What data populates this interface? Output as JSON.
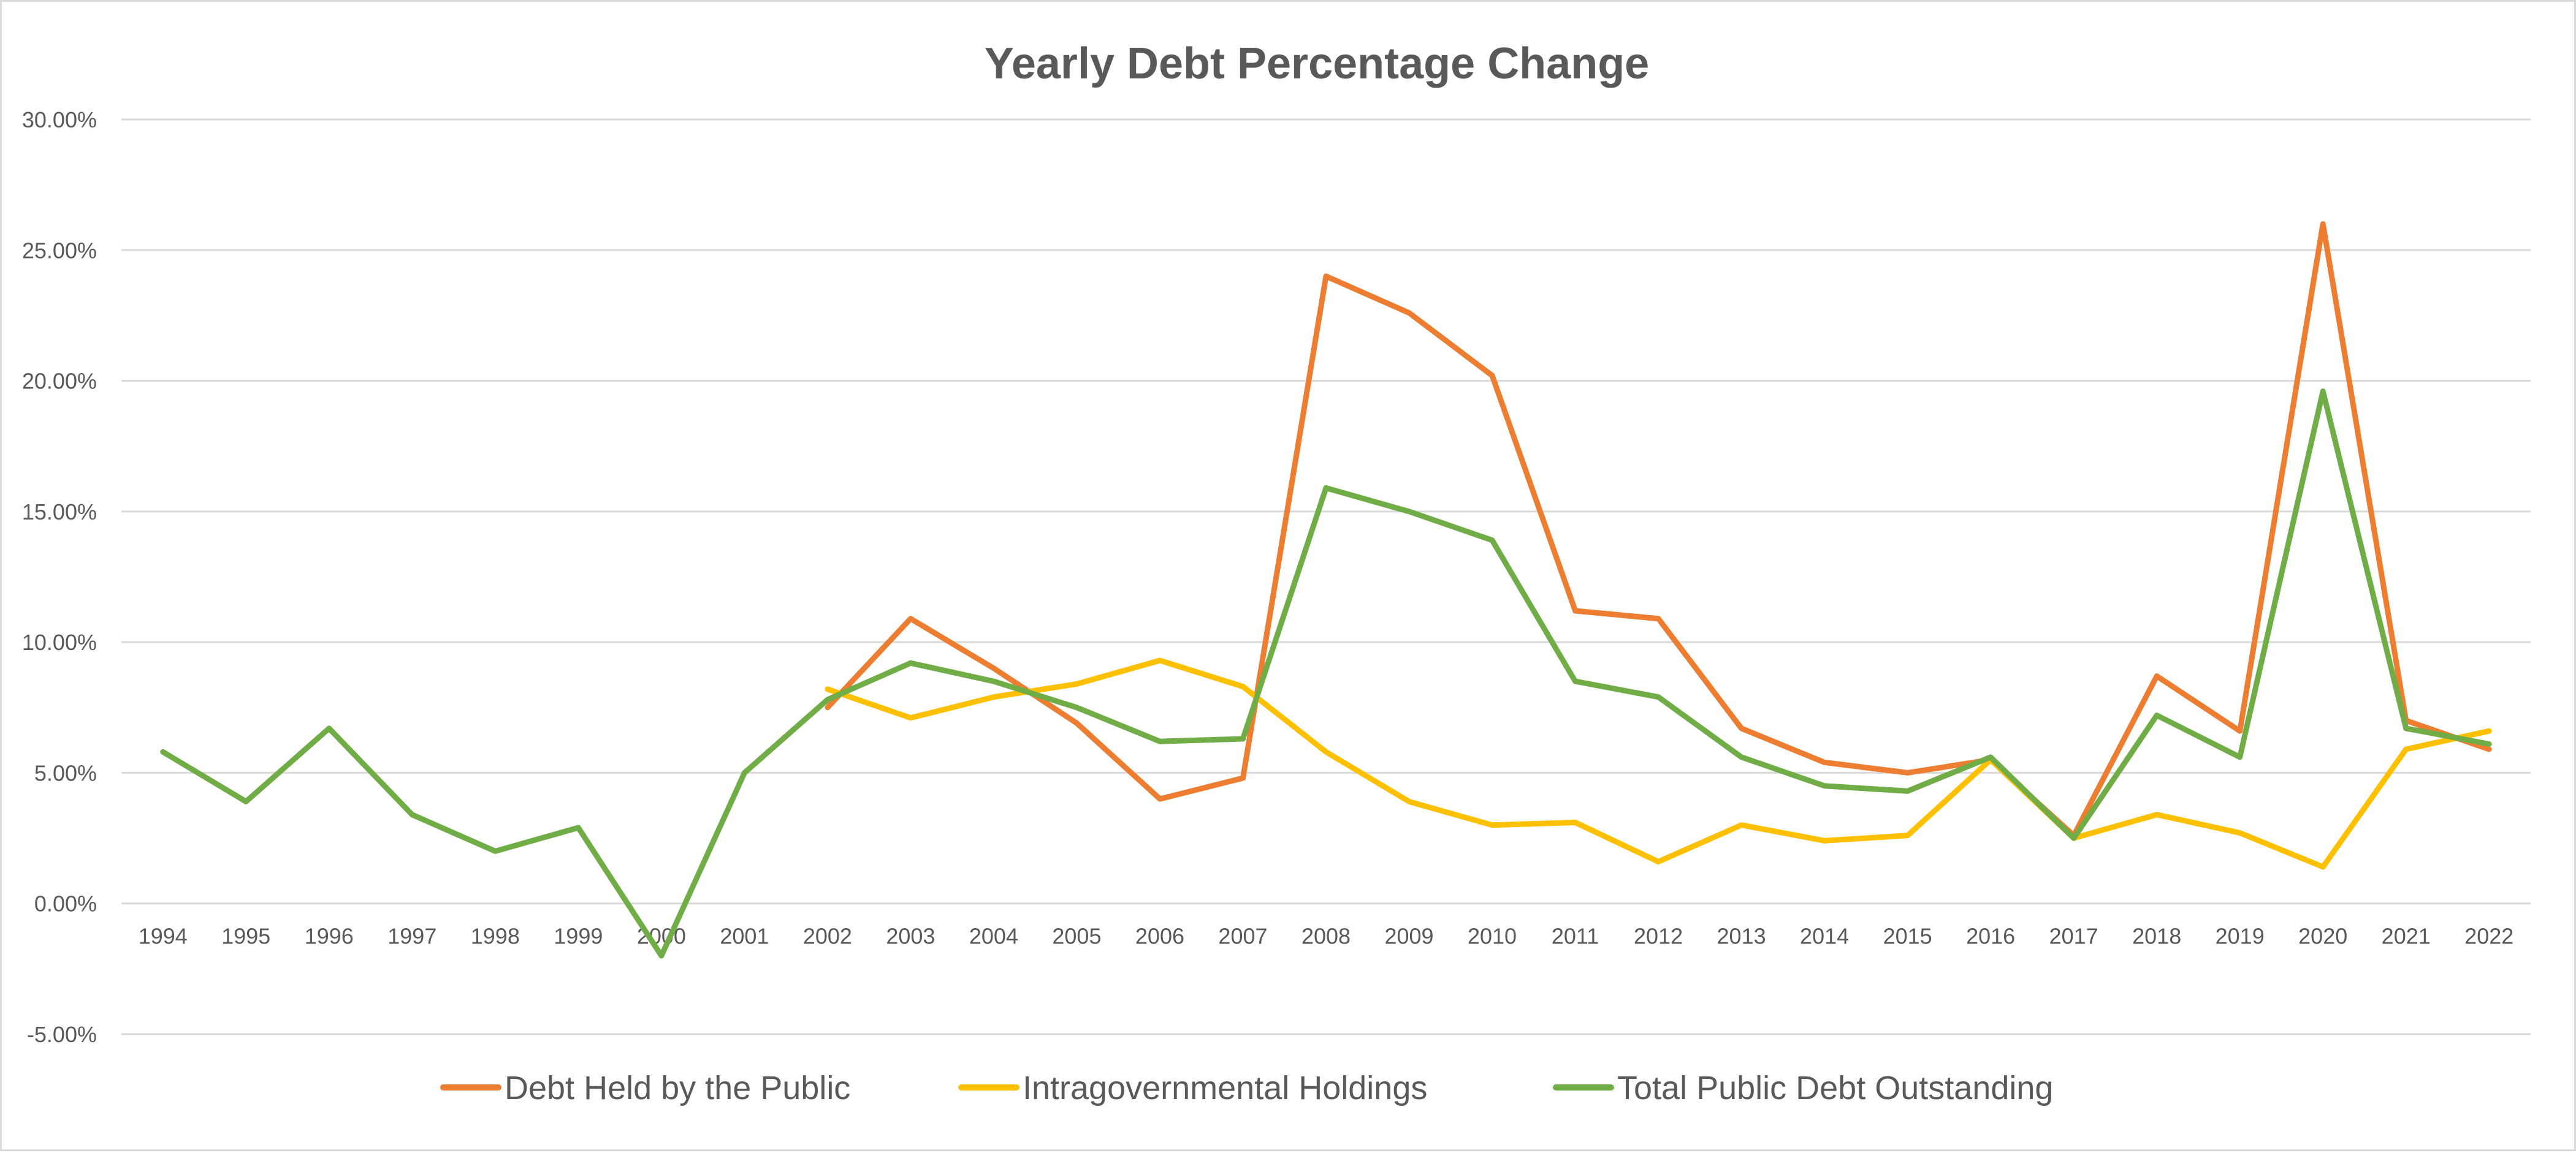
{
  "chart_data": {
    "type": "line",
    "title": "Yearly Debt Percentage Change",
    "xlabel": "",
    "ylabel": "",
    "ylim": [
      -5,
      30
    ],
    "yticks": [
      30,
      25,
      20,
      15,
      10,
      5,
      0,
      -5
    ],
    "ytick_labels": [
      "30.00%",
      "25.00%",
      "20.00%",
      "15.00%",
      "10.00%",
      "5.00%",
      "0.00%",
      "-5.00%"
    ],
    "grid": "horizontal",
    "legend_position": "bottom",
    "categories": [
      "1994",
      "1995",
      "1996",
      "1997",
      "1998",
      "1999",
      "2000",
      "2001",
      "2002",
      "2003",
      "2004",
      "2005",
      "2006",
      "2007",
      "2008",
      "2009",
      "2010",
      "2011",
      "2012",
      "2013",
      "2014",
      "2015",
      "2016",
      "2017",
      "2018",
      "2019",
      "2020",
      "2021",
      "2022"
    ],
    "series": [
      {
        "name": "Debt Held by the Public",
        "color": "#ED7D31",
        "values": [
          null,
          null,
          null,
          null,
          null,
          null,
          null,
          null,
          7.5,
          10.9,
          9.0,
          6.9,
          4.0,
          4.8,
          24.0,
          22.6,
          20.2,
          11.2,
          10.9,
          6.7,
          5.4,
          5.0,
          5.5,
          2.6,
          8.7,
          6.6,
          26.0,
          7.0,
          5.9
        ]
      },
      {
        "name": "Intragovernmental Holdings",
        "color": "#FFC000",
        "values": [
          null,
          null,
          null,
          null,
          null,
          null,
          null,
          null,
          8.2,
          7.1,
          7.9,
          8.4,
          9.3,
          8.3,
          5.8,
          3.9,
          3.0,
          3.1,
          1.6,
          3.0,
          2.4,
          2.6,
          5.5,
          2.5,
          3.4,
          2.7,
          1.4,
          5.9,
          6.6
        ]
      },
      {
        "name": "Total Public Debt Outstanding",
        "color": "#70AD47",
        "values": [
          5.8,
          3.9,
          6.7,
          3.4,
          2.0,
          2.9,
          -2.0,
          5.0,
          7.8,
          9.2,
          8.5,
          7.5,
          6.2,
          6.3,
          15.9,
          15.0,
          13.9,
          8.5,
          7.9,
          5.6,
          4.5,
          4.3,
          5.6,
          2.5,
          7.2,
          5.6,
          19.6,
          6.7,
          6.1
        ]
      }
    ]
  }
}
